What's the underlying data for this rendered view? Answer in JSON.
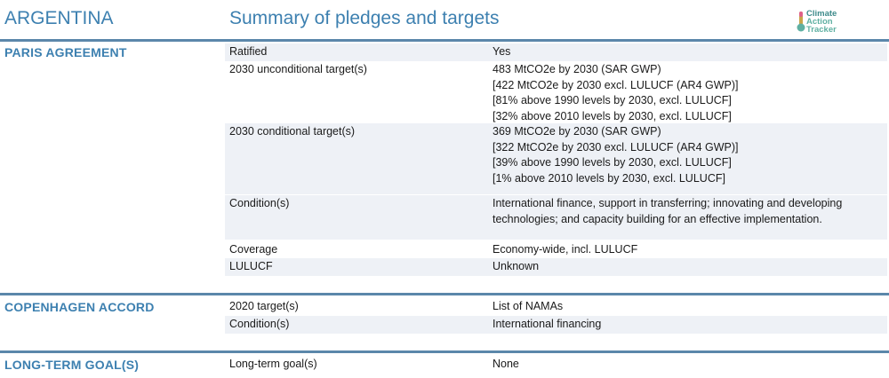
{
  "header": {
    "country": "ARGENTINA",
    "title": "Summary of pledges and targets",
    "logo_lines": [
      "Climate",
      "Action",
      "Tracker"
    ]
  },
  "sections": [
    {
      "title": "PARIS AGREEMENT",
      "rows": [
        {
          "label": "Ratified",
          "value": [
            "Yes"
          ]
        },
        {
          "label": "2030 unconditional target(s)",
          "value": [
            "483 MtCO2e by 2030 (SAR GWP)",
            "[422 MtCO2e by 2030 excl. LULUCF (AR4 GWP)]",
            "[81% above 1990 levels by 2030, excl. LULUCF]",
            "[32% above 2010 levels by 2030, excl. LULUCF]"
          ]
        },
        {
          "label": "2030 conditional target(s)",
          "value": [
            "369 MtCO2e by 2030 (SAR GWP)",
            "[322 MtCO2e by 2030 excl. LULUCF (AR4 GWP)]",
            "[39% above 1990 levels by 2030, excl. LULUCF]",
            "[1% above 2010 levels by 2030, excl. LULUCF]"
          ]
        },
        {
          "label": "Condition(s)",
          "value": [
            "International finance, support in transferring; innovating and developing technologies; and capacity building for an effective implementation."
          ]
        },
        {
          "label": "Coverage",
          "value": [
            "Economy-wide, incl. LULUCF"
          ]
        },
        {
          "label": "LULUCF",
          "value": [
            "Unknown"
          ]
        }
      ]
    },
    {
      "title": "COPENHAGEN ACCORD",
      "rows": [
        {
          "label": "2020 target(s)",
          "value": [
            "List of NAMAs"
          ]
        },
        {
          "label": "Condition(s)",
          "value": [
            "International financing"
          ]
        }
      ]
    },
    {
      "title": "LONG-TERM GOAL(S)",
      "rows": [
        {
          "label": "Long-term goal(s)",
          "value": [
            "None"
          ]
        }
      ]
    }
  ],
  "colors": {
    "accent": "#3d80b0",
    "rule": "#5b87aa",
    "row_shade": "#eef1f6"
  }
}
